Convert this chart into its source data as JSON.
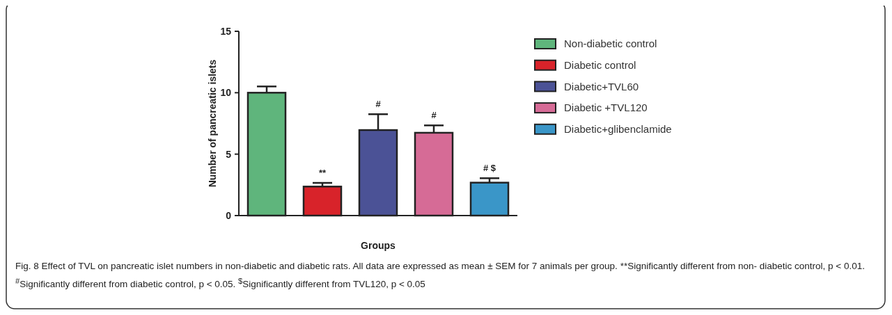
{
  "chart_data": {
    "type": "bar",
    "xlabel": "Groups",
    "ylabel": "Number of pancreatic islets",
    "categories": [
      null,
      null,
      null,
      null,
      null
    ],
    "series": [
      {
        "name": "Non-diabetic control",
        "color": "#5fb57c",
        "values": [
          10,
          null,
          null,
          null,
          null
        ],
        "errors": [
          0.51,
          null,
          null,
          null,
          null
        ]
      },
      {
        "name": "Diabetic control",
        "color": "#d8232a",
        "values": [
          null,
          2.36,
          null,
          null,
          null
        ],
        "errors": [
          null,
          0.3,
          null,
          null,
          null
        ]
      },
      {
        "name": "Diabetic+TVL60",
        "color": "#4b5296",
        "values": [
          null,
          null,
          6.96,
          null,
          null
        ],
        "errors": [
          null,
          null,
          1.29,
          null,
          null
        ]
      },
      {
        "name": "Diabetic +TVL120",
        "color": "#d66b96",
        "values": [
          null,
          null,
          null,
          6.74,
          null
        ],
        "errors": [
          null,
          null,
          null,
          0.6,
          null
        ]
      },
      {
        "name": "Diabetic+glibenclamide",
        "color": "#3a96c8",
        "values": [
          null,
          null,
          null,
          null,
          2.68
        ],
        "errors": [
          null,
          null,
          null,
          null,
          0.36
        ]
      }
    ],
    "ylim": [
      0,
      15
    ],
    "yticks": [
      0,
      5,
      10,
      15
    ],
    "grid": false,
    "legend": "right",
    "annotations": [
      "**",
      "#",
      "#",
      "# $",
      "**Significantly different from non- diabetic control, p < 0.01. $^{#}$Significantly different from diabetic control, p < 0.05. $^{$}$Significantly different from TVL120, p < 0.05",
      "Fig. 8 Effect of TVL on pancreatic islet numbers in non-diabetic and diabetic rats. All data are expressed as mean ± SEM for 7 animals per group."
    ]
  }
}
